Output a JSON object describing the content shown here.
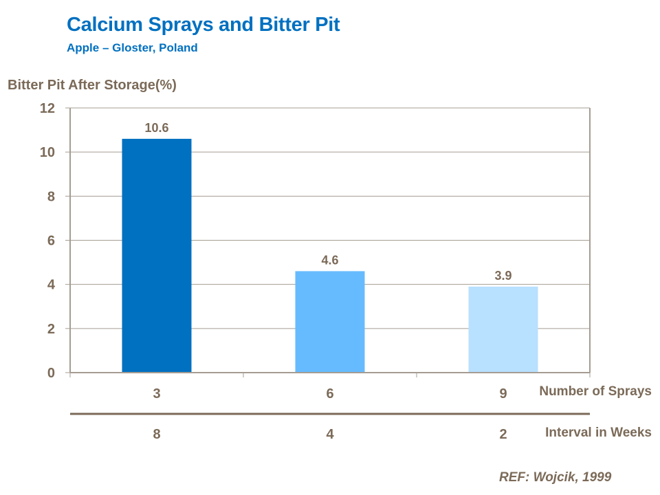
{
  "chart_data": {
    "type": "bar",
    "title": "Calcium Sprays and Bitter Pit",
    "subtitle": "Apple – Gloster, Poland",
    "ylabel": "Bitter Pit After Storage(%)",
    "ylim": [
      0,
      12
    ],
    "yticks": [
      0,
      2,
      4,
      6,
      8,
      10,
      12
    ],
    "grid": true,
    "categories": [
      "3",
      "6",
      "9"
    ],
    "category_axis_label": "Number of Sprays",
    "secondary_categories": [
      "8",
      "4",
      "2"
    ],
    "secondary_axis_label": "Interval in Weeks",
    "values": [
      10.6,
      4.6,
      3.9
    ],
    "data_labels": [
      "10.6",
      "4.6",
      "3.9"
    ],
    "bar_colors": [
      "#0070C0",
      "#66BBFF",
      "#B8E0FF"
    ],
    "reference": "REF: Wojcik, 1999"
  },
  "colors": {
    "title": "#0070C0",
    "text": "#7B6A58",
    "grid": "#A59C92"
  }
}
